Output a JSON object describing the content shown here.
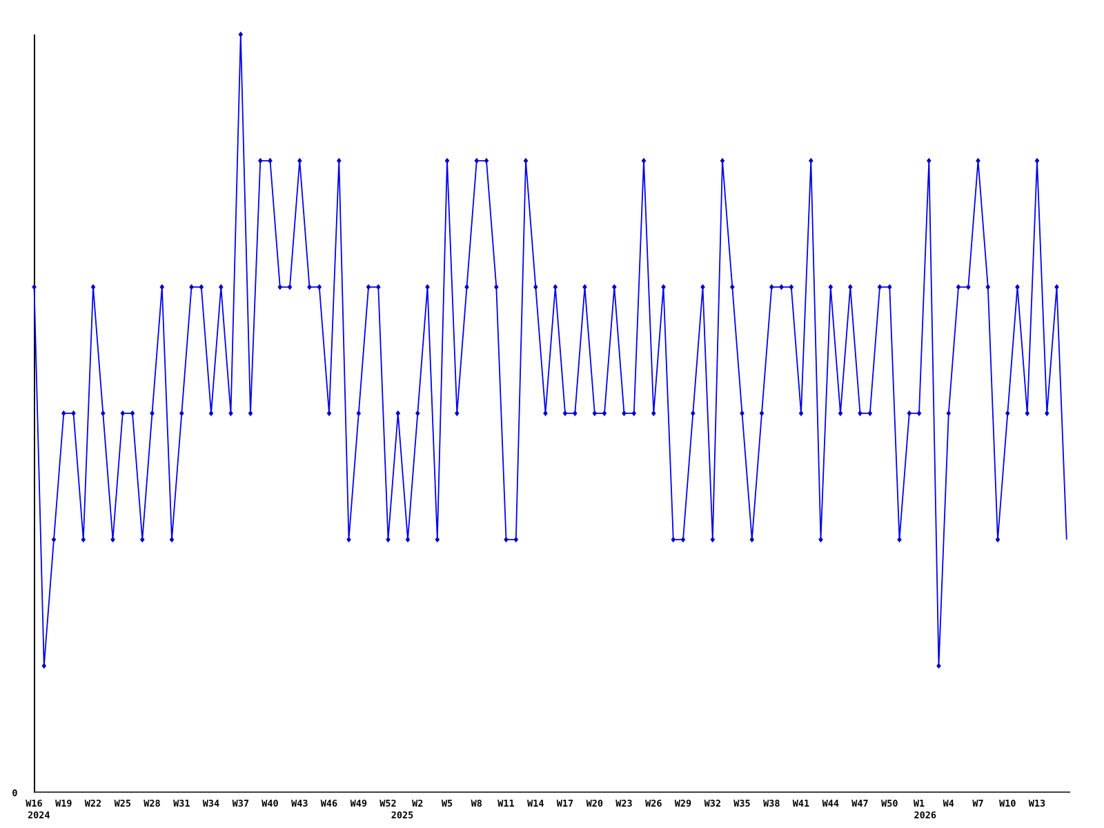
{
  "chart_data": {
    "type": "line",
    "title": "",
    "xlabel": "",
    "ylabel": "",
    "grid": false,
    "legend": null,
    "x_start": "W16 2024",
    "x_step": "1 week",
    "n_points": 106,
    "y_axis": {
      "origin_tick_label": "0",
      "min": 0,
      "plotted_max": 6
    },
    "values": [
      4,
      1,
      2,
      3,
      3,
      2,
      4,
      3,
      2,
      3,
      3,
      2,
      3,
      4,
      2,
      3,
      4,
      4,
      3,
      4,
      3,
      6,
      3,
      5,
      5,
      4,
      4,
      5,
      4,
      4,
      3,
      5,
      2,
      3,
      4,
      4,
      2,
      3,
      2,
      3,
      4,
      2,
      5,
      3,
      4,
      5,
      5,
      4,
      2,
      2,
      5,
      4,
      3,
      4,
      3,
      3,
      4,
      3,
      3,
      4,
      3,
      3,
      5,
      3,
      4,
      2,
      2,
      3,
      4,
      2,
      5,
      4,
      3,
      2,
      3,
      4,
      4,
      4,
      3,
      5,
      2,
      4,
      3,
      4,
      3,
      3,
      4,
      4,
      2,
      3,
      3,
      5,
      1,
      3,
      4,
      4,
      5,
      4,
      2,
      3,
      4,
      3,
      5,
      3,
      4,
      2
    ],
    "x_ticks": [
      {
        "index": 0,
        "label": "W16"
      },
      {
        "index": 3,
        "label": "W19"
      },
      {
        "index": 6,
        "label": "W22"
      },
      {
        "index": 9,
        "label": "W25"
      },
      {
        "index": 12,
        "label": "W28"
      },
      {
        "index": 15,
        "label": "W31"
      },
      {
        "index": 18,
        "label": "W34"
      },
      {
        "index": 21,
        "label": "W37"
      },
      {
        "index": 24,
        "label": "W40"
      },
      {
        "index": 27,
        "label": "W43"
      },
      {
        "index": 30,
        "label": "W46"
      },
      {
        "index": 33,
        "label": "W49"
      },
      {
        "index": 36,
        "label": "W52"
      },
      {
        "index": 39,
        "label": "W2"
      },
      {
        "index": 42,
        "label": "W5"
      },
      {
        "index": 45,
        "label": "W8"
      },
      {
        "index": 48,
        "label": "W11"
      },
      {
        "index": 51,
        "label": "W14"
      },
      {
        "index": 54,
        "label": "W17"
      },
      {
        "index": 57,
        "label": "W20"
      },
      {
        "index": 60,
        "label": "W23"
      },
      {
        "index": 63,
        "label": "W26"
      },
      {
        "index": 66,
        "label": "W29"
      },
      {
        "index": 69,
        "label": "W32"
      },
      {
        "index": 72,
        "label": "W35"
      },
      {
        "index": 75,
        "label": "W38"
      },
      {
        "index": 78,
        "label": "W41"
      },
      {
        "index": 81,
        "label": "W44"
      },
      {
        "index": 84,
        "label": "W47"
      },
      {
        "index": 87,
        "label": "W50"
      },
      {
        "index": 90,
        "label": "W1"
      },
      {
        "index": 93,
        "label": "W4"
      },
      {
        "index": 96,
        "label": "W7"
      },
      {
        "index": 99,
        "label": "W10"
      },
      {
        "index": 102,
        "label": "W13"
      }
    ],
    "year_labels": [
      {
        "index": 0,
        "label": "2024"
      },
      {
        "index": 39,
        "label": "2025"
      },
      {
        "index": 90,
        "label": "2026"
      }
    ],
    "line_color": "#0101f0",
    "marker_color": "#0000c8",
    "axis_color": "#000000",
    "marker": "diamond",
    "last_point_has_marker": false
  }
}
